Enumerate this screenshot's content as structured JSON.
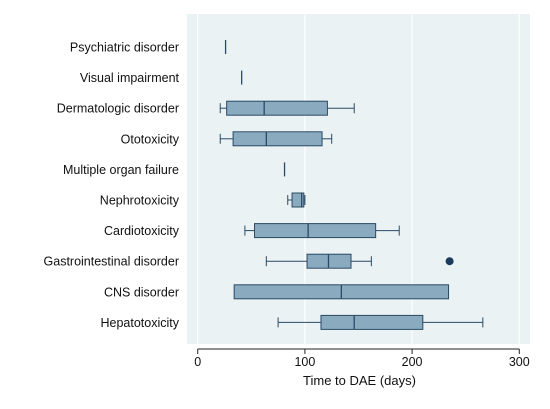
{
  "chart_data": {
    "type": "boxplot",
    "title": "",
    "xlabel": "Time to DAE (days)",
    "ylabel": "",
    "xlim": [
      -10,
      310
    ],
    "xticks": [
      0,
      100,
      200,
      300
    ],
    "grid": true,
    "orientation": "horizontal",
    "colors": {
      "background": "#eaf2f3",
      "box_fill": "#8aaabf",
      "box_stroke": "#2a4a66",
      "grid": "#ffffff",
      "outlier": "#1b3a5c"
    },
    "categories": [
      "Psychiatric disorder",
      "Visual impairment",
      "Dermatologic disorder",
      "Ototoxicity",
      "Multiple organ failure",
      "Nephrotoxicity",
      "Cardiotoxicity",
      "Gastrointestinal disorder",
      "CNS disorder",
      "Hepatotoxicity"
    ],
    "boxes": [
      {
        "category": "Psychiatric disorder",
        "min": 26,
        "q1": 26,
        "median": 26,
        "q3": 26,
        "max": 26,
        "outliers": []
      },
      {
        "category": "Visual impairment",
        "min": 41,
        "q1": 41,
        "median": 41,
        "q3": 41,
        "max": 41,
        "outliers": []
      },
      {
        "category": "Dermatologic disorder",
        "min": 21,
        "q1": 27,
        "median": 62,
        "q3": 121,
        "max": 146,
        "outliers": []
      },
      {
        "category": "Ototoxicity",
        "min": 21,
        "q1": 33,
        "median": 64,
        "q3": 116,
        "max": 125,
        "outliers": []
      },
      {
        "category": "Multiple organ failure",
        "min": 81,
        "q1": 81,
        "median": 81,
        "q3": 81,
        "max": 81,
        "outliers": []
      },
      {
        "category": "Nephrotoxicity",
        "min": 84,
        "q1": 88,
        "median": 97,
        "q3": 99,
        "max": 100,
        "outliers": []
      },
      {
        "category": "Cardiotoxicity",
        "min": 44,
        "q1": 53,
        "median": 103,
        "q3": 166,
        "max": 188,
        "outliers": []
      },
      {
        "category": "Gastrointestinal disorder",
        "min": 64,
        "q1": 102,
        "median": 122,
        "q3": 143,
        "max": 162,
        "outliers": [
          235
        ]
      },
      {
        "category": "CNS disorder",
        "min": 34,
        "q1": 34,
        "median": 134,
        "q3": 234,
        "max": 234,
        "outliers": []
      },
      {
        "category": "Hepatotoxicity",
        "min": 75,
        "q1": 115,
        "median": 146,
        "q3": 210,
        "max": 266,
        "outliers": []
      }
    ]
  }
}
